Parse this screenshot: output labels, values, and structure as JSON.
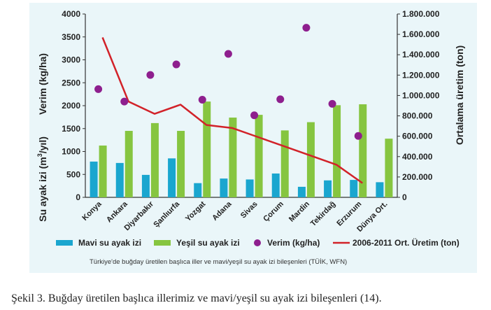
{
  "chart_data": {
    "type": "bar",
    "categories": [
      "Konya",
      "Ankara",
      "Diyarbakır",
      "Şanlıurfa",
      "Yozgat",
      "Adana",
      "Sivas",
      "Çorum",
      "Mardin",
      "Tekirdağ",
      "Erzurum",
      "Dünya Ort."
    ],
    "left_axis": {
      "tick_labels": [
        "0",
        "500",
        "1000",
        "1500",
        "2000",
        "2500",
        "3000",
        "3500",
        "4000"
      ],
      "ylim": [
        0,
        4000
      ],
      "title_line1": "Verim (kg/ha)",
      "title_line2_prefix": "Su ayak izi (m",
      "title_line2_sup": "3",
      "title_line2_suffix": "/yıl)"
    },
    "right_axis": {
      "tick_labels": [
        "0",
        "200.000",
        "400.000",
        "600.000",
        "800.000",
        "1.000.000",
        "1.200.000",
        "1.400.000",
        "1.600.000",
        "1.800.000"
      ],
      "ylim": [
        0,
        1800000
      ],
      "title": "Ortalama üretim (ton)"
    },
    "series": [
      {
        "name": "Mavi su ayak izi",
        "kind": "bar",
        "axis": "left",
        "color": "#1aa6cf",
        "values": [
          780,
          750,
          490,
          850,
          310,
          410,
          390,
          520,
          230,
          370,
          380,
          330
        ]
      },
      {
        "name": "Yeşil su ayak izi",
        "kind": "bar",
        "axis": "left",
        "color": "#86c540",
        "values": [
          1130,
          1450,
          1620,
          1450,
          2090,
          1740,
          1800,
          1460,
          1640,
          2010,
          2030,
          1280
        ]
      },
      {
        "name": "Verim (kg/ha)",
        "kind": "scatter",
        "axis": "left",
        "color": "#8e1f8e",
        "values": [
          2360,
          2090,
          2670,
          2900,
          2130,
          3130,
          1790,
          2140,
          3700,
          2040,
          1340,
          null
        ]
      },
      {
        "name": "2006-2011 Ort. Üretim (ton)",
        "kind": "line",
        "axis": "right",
        "color": "#d22229",
        "values": [
          1570000,
          940000,
          820000,
          910000,
          710000,
          680000,
          590000,
          500000,
          410000,
          320000,
          140000,
          null
        ]
      }
    ],
    "legend": [
      "Mavi su ayak izi",
      "Yeşil su ayak izi",
      "Verim (kg/ha)",
      "2006-2011 Ort. Üretim (ton)"
    ],
    "source_note": "Türkiye'de buğday üretilen başlıca iller ve mavi/yeşil su ayak izi bileşenleri (TÜİK, WFN)"
  },
  "caption": "Şekil 3. Buğday üretilen başlıca illerimiz ve mavi/yeşil su ayak izi bileşenleri (14)."
}
